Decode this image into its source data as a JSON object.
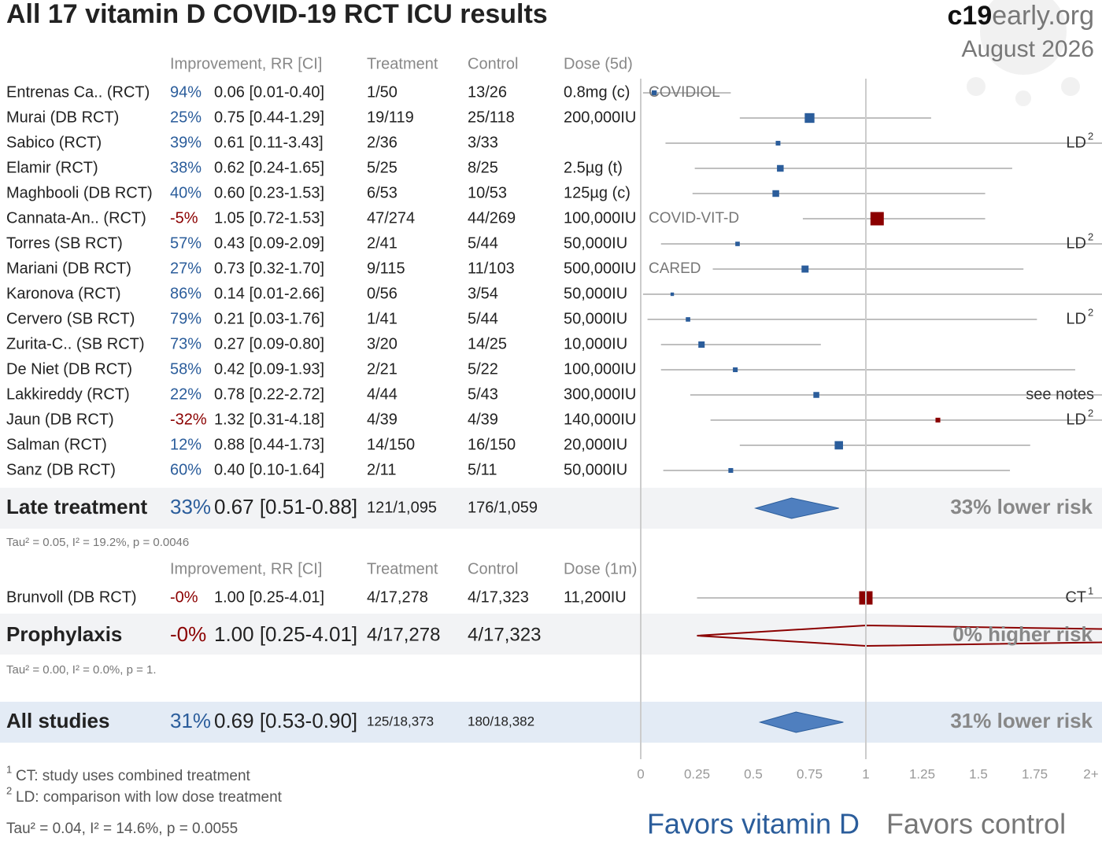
{
  "chart_data": {
    "type": "forest",
    "title": "All 17 vitamin D COVID-19 RCT ICU results",
    "brand_bold": "c19",
    "brand_rest": "early.org",
    "date": "August 2026",
    "xlim": [
      0,
      2
    ],
    "xticks": [
      0,
      0.25,
      0.5,
      0.75,
      1,
      1.25,
      1.5,
      1.75,
      {
        "value": 2,
        "label": "2+"
      }
    ],
    "reference_line": 1,
    "colors": {
      "favors": "#2b5d9b",
      "against": "#8b0000"
    },
    "groups": [
      {
        "columns": [
          "Improvement, RR [CI]",
          "Treatment",
          "Control",
          "Dose (5d)"
        ],
        "studies": [
          {
            "name": "Entrenas Ca.. (RCT)",
            "improvement": "94%",
            "rr_label": "0.06 [0.01-0.40]",
            "rr": 0.06,
            "lo": 0.01,
            "hi": 0.4,
            "weight": 2.5,
            "treatment": "1/50",
            "control": "13/26",
            "dose": "0.8mg (c)",
            "trial": "COVIDIOL"
          },
          {
            "name": "Murai (DB RCT)",
            "improvement": "25%",
            "rr_label": "0.75 [0.44-1.29]",
            "rr": 0.75,
            "lo": 0.44,
            "hi": 1.29,
            "weight": 9.5,
            "treatment": "19/119",
            "control": "25/118",
            "dose": "200,000IU"
          },
          {
            "name": "Sabico (RCT)",
            "improvement": "39%",
            "rr_label": "0.61 [0.11-3.43]",
            "rr": 0.61,
            "lo": 0.11,
            "hi": 3.43,
            "weight": 2.2,
            "treatment": "2/36",
            "control": "3/33",
            "note": "LD",
            "note_sup": "2"
          },
          {
            "name": "Elamir (RCT)",
            "improvement": "38%",
            "rr_label": "0.62 [0.24-1.65]",
            "rr": 0.62,
            "lo": 0.24,
            "hi": 1.65,
            "weight": 4.5,
            "treatment": "5/25",
            "control": "8/25",
            "dose": "2.5µg (t)"
          },
          {
            "name": "Maghbooli (DB RCT)",
            "improvement": "40%",
            "rr_label": "0.60 [0.23-1.53]",
            "rr": 0.6,
            "lo": 0.23,
            "hi": 1.53,
            "weight": 4.5,
            "treatment": "6/53",
            "control": "10/53",
            "dose": "125µg (c)"
          },
          {
            "name": "Cannata-An.. (RCT)",
            "improvement": "-5%",
            "rr_label": "1.05 [0.72-1.53]",
            "rr": 1.05,
            "lo": 0.72,
            "hi": 1.53,
            "weight": 18,
            "treatment": "47/274",
            "control": "44/269",
            "dose": "100,000IU",
            "trial": "COVID-VIT-D"
          },
          {
            "name": "Torres (SB RCT)",
            "improvement": "57%",
            "rr_label": "0.43 [0.09-2.09]",
            "rr": 0.43,
            "lo": 0.09,
            "hi": 2.09,
            "weight": 2,
            "treatment": "2/41",
            "control": "5/44",
            "dose": "50,000IU",
            "note": "LD",
            "note_sup": "2"
          },
          {
            "name": "Mariani (DB RCT)",
            "improvement": "27%",
            "rr_label": "0.73 [0.32-1.70]",
            "rr": 0.73,
            "lo": 0.32,
            "hi": 1.7,
            "weight": 5,
            "treatment": "9/115",
            "control": "11/103",
            "dose": "500,000IU",
            "trial": "CARED"
          },
          {
            "name": "Karonova (RCT)",
            "improvement": "86%",
            "rr_label": "0.14 [0.01-2.66]",
            "rr": 0.14,
            "lo": 0.01,
            "hi": 2.66,
            "weight": 1.2,
            "treatment": "0/56",
            "control": "3/54",
            "dose": "50,000IU"
          },
          {
            "name": "Cervero (SB RCT)",
            "improvement": "79%",
            "rr_label": "0.21 [0.03-1.76]",
            "rr": 0.21,
            "lo": 0.03,
            "hi": 1.76,
            "weight": 2,
            "treatment": "1/41",
            "control": "5/44",
            "dose": "50,000IU",
            "note": "LD",
            "note_sup": "2"
          },
          {
            "name": "Zurita-C.. (SB RCT)",
            "improvement": "73%",
            "rr_label": "0.27 [0.09-0.80]",
            "rr": 0.27,
            "lo": 0.09,
            "hi": 0.8,
            "weight": 4,
            "treatment": "3/20",
            "control": "14/25",
            "dose": "10,000IU"
          },
          {
            "name": "De Niet (DB RCT)",
            "improvement": "58%",
            "rr_label": "0.42 [0.09-1.93]",
            "rr": 0.42,
            "lo": 0.09,
            "hi": 1.93,
            "weight": 2.3,
            "treatment": "2/21",
            "control": "5/22",
            "dose": "100,000IU"
          },
          {
            "name": "Lakkireddy (RCT)",
            "improvement": "22%",
            "rr_label": "0.78 [0.22-2.72]",
            "rr": 0.78,
            "lo": 0.22,
            "hi": 2.72,
            "weight": 3.5,
            "treatment": "4/44",
            "control": "5/43",
            "dose": "300,000IU",
            "note": "see notes"
          },
          {
            "name": "Jaun (DB RCT)",
            "improvement": "-32%",
            "rr_label": "1.32 [0.31-4.18]",
            "rr": 1.32,
            "lo": 0.31,
            "hi": 4.18,
            "weight": 2.3,
            "treatment": "4/39",
            "control": "4/39",
            "dose": "140,000IU",
            "note": "LD",
            "note_sup": "2"
          },
          {
            "name": "Salman (RCT)",
            "improvement": "12%",
            "rr_label": "0.88 [0.44-1.73]",
            "rr": 0.88,
            "lo": 0.44,
            "hi": 1.73,
            "weight": 7,
            "treatment": "14/150",
            "control": "16/150",
            "dose": "20,000IU"
          },
          {
            "name": "Sanz (DB RCT)",
            "improvement": "60%",
            "rr_label": "0.40 [0.10-1.64]",
            "rr": 0.4,
            "lo": 0.1,
            "hi": 1.64,
            "weight": 2.3,
            "treatment": "2/11",
            "control": "5/11",
            "dose": "50,000IU"
          }
        ],
        "summary": {
          "name": "Late treatment",
          "improvement": "33%",
          "rr_label": "0.67 [0.51-0.88]",
          "rr": 0.67,
          "lo": 0.51,
          "hi": 0.88,
          "treatment": "121/1,095",
          "control": "176/1,059",
          "risk": "33% lower risk"
        },
        "stats": "Tau² = 0.05, I² = 19.2%, p = 0.0046"
      },
      {
        "columns": [
          "Improvement, RR [CI]",
          "Treatment",
          "Control",
          "Dose (1m)"
        ],
        "studies": [
          {
            "name": "Brunvoll (DB RCT)",
            "improvement": "-0%",
            "rr_label": "1.00 [0.25-4.01]",
            "rr": 1.0,
            "lo": 0.25,
            "hi": 4.01,
            "weight": 18,
            "treatment": "4/17,278",
            "control": "4/17,323",
            "dose": "11,200IU",
            "note": "CT",
            "note_sup": "1"
          }
        ],
        "summary": {
          "name": "Prophylaxis",
          "improvement": "-0%",
          "rr_label": "1.00 [0.25-4.01]",
          "rr": 1.0,
          "lo": 0.25,
          "hi": 4.01,
          "treatment": "4/17,278",
          "control": "4/17,323",
          "risk": "0% higher risk"
        },
        "stats": "Tau² = 0.00, I² = 0.0%, p = 1."
      }
    ],
    "overall": {
      "name": "All studies",
      "improvement": "31%",
      "rr_label": "0.69 [0.53-0.90]",
      "rr": 0.69,
      "lo": 0.53,
      "hi": 0.9,
      "treatment": "125/18,373",
      "control": "180/18,382",
      "risk": "31% lower risk"
    },
    "overall_stats": "Tau² = 0.04, I² = 14.6%, p = 0.0055",
    "footnotes": [
      {
        "sup": "1",
        "text": "CT: study uses combined treatment"
      },
      {
        "sup": "2",
        "text": "LD: comparison with low dose treatment"
      }
    ],
    "favors_left": "Favors vitamin D",
    "favors_right": "Favors control"
  }
}
